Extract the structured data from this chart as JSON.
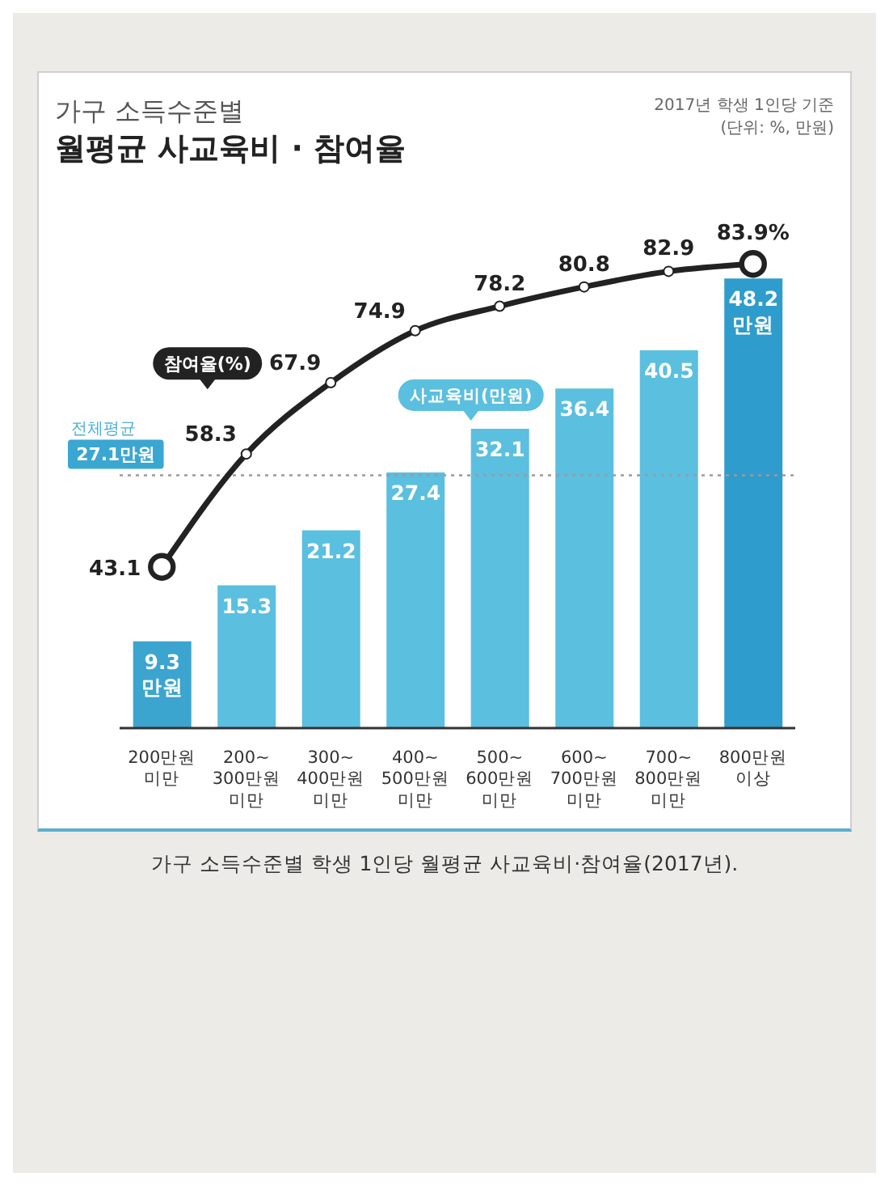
{
  "chart_data": {
    "type": "bar",
    "title": "가구 소득수준별\n월평균 사교육비 · 참여율",
    "subtitle": "2017년 학생 1인당 기준\n(단위: %, 만원)",
    "categories": [
      "200만원\n미만",
      "200~\n300만원\n미만",
      "300~\n400만원\n미만",
      "400~\n500만원\n미만",
      "500~\n600만원\n미만",
      "600~\n700만원\n미만",
      "700~\n800만원\n미만",
      "800만원\n이상"
    ],
    "series": [
      {
        "name": "사교육비(만원)",
        "color": "#5bbfdf",
        "colors": [
          "#3ba5cf",
          "#5bbfdf",
          "#5bbfdf",
          "#5bbfdf",
          "#5bbfdf",
          "#5bbfdf",
          "#5bbfdf",
          "#2e9ccc"
        ],
        "values": [
          9.3,
          15.3,
          21.2,
          27.4,
          32.1,
          36.4,
          40.5,
          48.2
        ],
        "value_labels": [
          "9.3\n만원",
          "15.3",
          "21.2",
          "27.4",
          "32.1",
          "36.4",
          "40.5",
          "48.2\n만원"
        ]
      },
      {
        "name": "참여율(%)",
        "type": "line",
        "axis": "y2",
        "color": "#222222",
        "values": [
          43.1,
          58.3,
          67.9,
          74.9,
          78.2,
          80.8,
          82.9,
          83.9
        ],
        "value_labels": [
          "43.1",
          "58.3",
          "67.9",
          "74.9",
          "78.2",
          "80.8",
          "82.9",
          "83.9%"
        ]
      }
    ],
    "marker": "circle",
    "line_style": "solid",
    "ref_lines": [
      {
        "axis": "y",
        "value": 27.1,
        "label": "전체평균\n27.1만원",
        "color": "#9a9a9a",
        "line_style": "dotted"
      }
    ],
    "annotations": [
      "가구 소득수준별 학생 1인당 월평균 사교육비·참여율(2017년)."
    ]
  }
}
